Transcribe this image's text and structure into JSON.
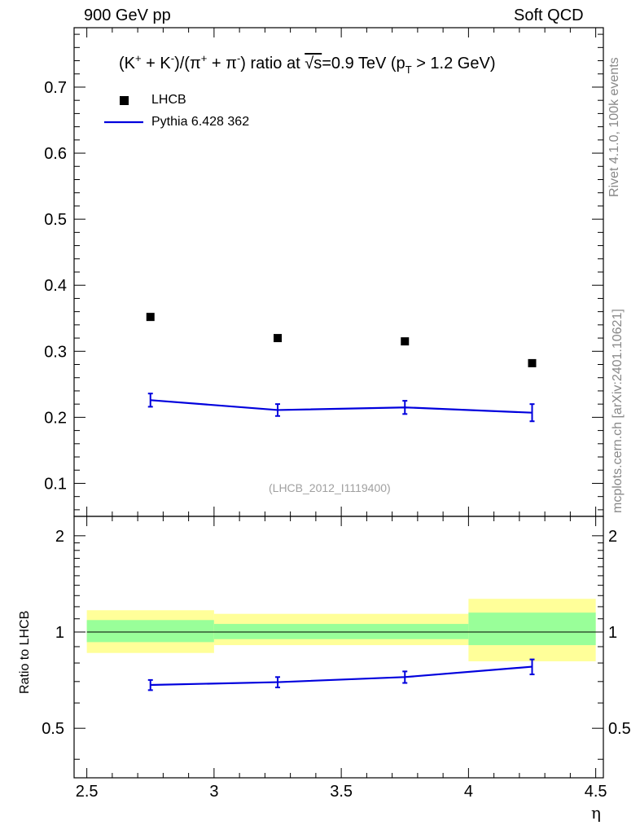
{
  "header": {
    "left": "900 GeV pp",
    "right": "Soft QCD"
  },
  "side_labels": {
    "rivet": "Rivet 4.1.0,  100k events",
    "mcplots": "mcplots.cern.ch [arXiv:2401.10621]"
  },
  "title": {
    "part1": "(K",
    "part2": " + K",
    "part3": ")/(π",
    "part4": " + π",
    "part5": ") ratio at ",
    "sqrt": "√s",
    "part6": "=0.9 TeV (p",
    "sub_T": "T",
    "part7": " > 1.2 GeV)",
    "sup_plus": "+",
    "sup_minus": "-"
  },
  "analysis_id": "(LHCB_2012_I1119400)",
  "colors": {
    "data": "#000000",
    "mc": "#0000dd",
    "band_outer": "#ffff99",
    "band_inner": "#99ff99"
  },
  "chart_data": [
    {
      "type": "scatter",
      "panel": "main",
      "ylim": [
        0.05,
        0.79
      ],
      "xlim": [
        2.45,
        4.53
      ],
      "yticks_major": [
        0.1,
        0.2,
        0.3,
        0.4,
        0.5,
        0.6,
        0.7
      ],
      "ytick_labels": [
        "0.1",
        "0.2",
        "0.3",
        "0.4",
        "0.5",
        "0.6",
        "0.7"
      ],
      "series": [
        {
          "name": "LHCB",
          "kind": "markers",
          "x": [
            2.75,
            3.25,
            3.75,
            4.25
          ],
          "y": [
            0.352,
            0.32,
            0.315,
            0.282
          ]
        },
        {
          "name": "Pythia 6.428 362",
          "kind": "line",
          "x": [
            2.75,
            3.25,
            3.75,
            4.25
          ],
          "y": [
            0.226,
            0.211,
            0.215,
            0.207
          ],
          "yerr": [
            0.01,
            0.009,
            0.01,
            0.013
          ]
        }
      ]
    },
    {
      "type": "line",
      "panel": "ratio",
      "ylabel": "Ratio to LHCB",
      "xlabel": "η",
      "ylim": [
        0.35,
        2.3
      ],
      "xlim": [
        2.45,
        4.53
      ],
      "yticks_major": [
        0.5,
        1,
        2
      ],
      "ytick_labels": [
        "0.5",
        "1",
        "2"
      ],
      "xticks_major": [
        2.5,
        3,
        3.5,
        4,
        4.5
      ],
      "xtick_labels": [
        "2.5",
        "3",
        "3.5",
        "4",
        "4.5"
      ],
      "bands": [
        {
          "x0": 2.5,
          "x1": 3.0,
          "inner": [
            0.93,
            1.09
          ],
          "outer": [
            0.86,
            1.17
          ]
        },
        {
          "x0": 3.0,
          "x1": 4.0,
          "inner": [
            0.95,
            1.06
          ],
          "outer": [
            0.91,
            1.14
          ]
        },
        {
          "x0": 4.0,
          "x1": 4.5,
          "inner": [
            0.91,
            1.15
          ],
          "outer": [
            0.81,
            1.27
          ]
        }
      ],
      "series": [
        {
          "name": "Pythia 6.428 362",
          "x": [
            2.75,
            3.25,
            3.75,
            4.25
          ],
          "y": [
            0.683,
            0.697,
            0.723,
            0.779
          ],
          "yerr": [
            0.025,
            0.026,
            0.03,
            0.042
          ]
        }
      ]
    }
  ]
}
